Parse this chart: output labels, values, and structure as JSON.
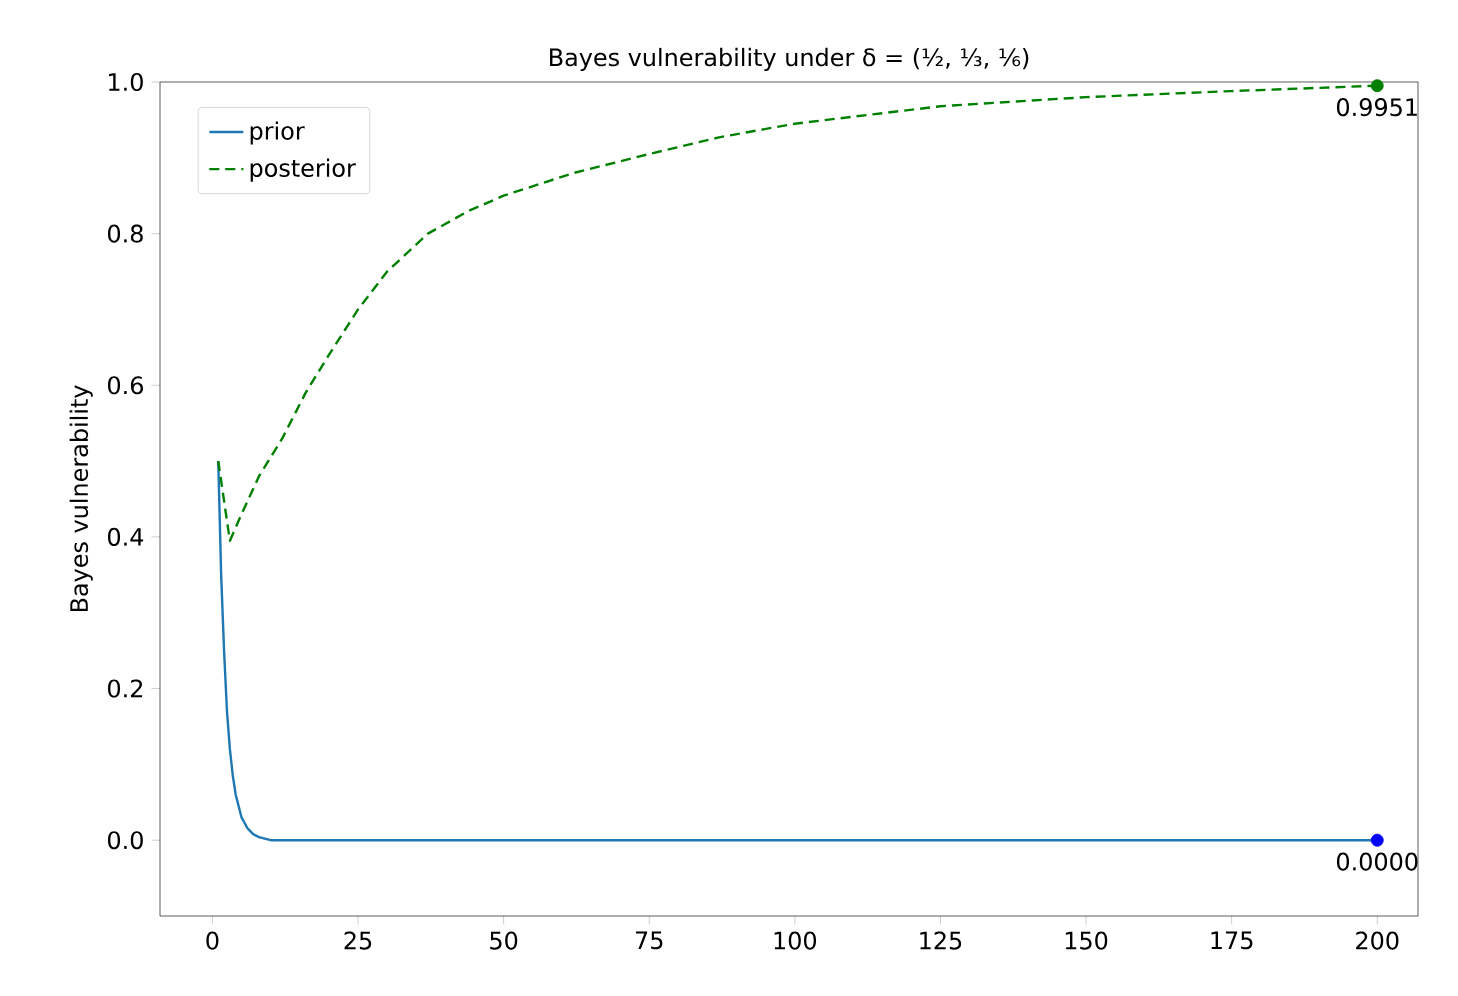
{
  "chart_data": {
    "type": "line",
    "title": "Bayes vulnerability under δ = (½, ⅓, ⅙)",
    "ylabel": "Bayes vulnerability",
    "xlim": [
      -9,
      207
    ],
    "ylim": [
      -0.1,
      1.0
    ],
    "xticks": [
      0,
      25,
      50,
      75,
      100,
      125,
      150,
      175,
      200
    ],
    "yticks": [
      {
        "value": 0,
        "label": "0.0"
      },
      {
        "value": 0.2,
        "label": "0.2"
      },
      {
        "value": 0.4,
        "label": "0.4"
      },
      {
        "value": 0.6,
        "label": "0.6"
      },
      {
        "value": 0.8,
        "label": "0.8"
      },
      {
        "value": 1.0,
        "label": "1.0"
      }
    ],
    "legend": "top left",
    "series": [
      {
        "name": "prior",
        "color": "#1f77b4",
        "line_style": "solid",
        "x": [
          1,
          1.5,
          2,
          2.5,
          3,
          3.5,
          4,
          5,
          6,
          7,
          8,
          10,
          200
        ],
        "values": [
          0.5,
          0.35,
          0.25,
          0.17,
          0.12,
          0.085,
          0.06,
          0.03,
          0.016,
          0.008,
          0.004,
          0,
          0
        ]
      },
      {
        "name": "posterior",
        "type": "line",
        "color": "#008000",
        "line_style": "dashed",
        "x": [
          1,
          3,
          5,
          8,
          12,
          16,
          20,
          25,
          30,
          37,
          44,
          50,
          62,
          75,
          87,
          100,
          125,
          150,
          175,
          200
        ],
        "values": [
          0.5,
          0.395,
          0.43,
          0.48,
          0.53,
          0.59,
          0.64,
          0.7,
          0.75,
          0.8,
          0.83,
          0.85,
          0.88,
          0.905,
          0.927,
          0.945,
          0.968,
          0.98,
          0.988,
          0.9951
        ]
      },
      {
        "type": "scatter",
        "color": "#008000",
        "x": [
          200
        ],
        "values": [
          0.9951
        ]
      },
      {
        "type": "scatter",
        "color": "#0000ff",
        "x": [
          200
        ],
        "values": [
          0
        ]
      }
    ],
    "annotations": [
      {
        "text": "0.9951",
        "x": 200,
        "y": 0.9951
      },
      {
        "text": "0.0000",
        "x": 200,
        "y": 0
      }
    ]
  }
}
